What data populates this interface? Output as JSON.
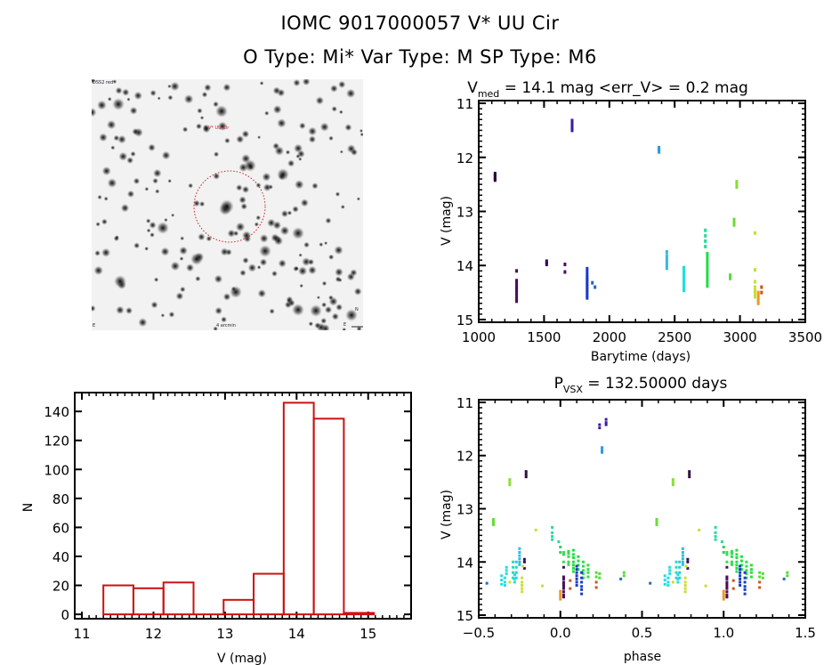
{
  "header": {
    "title_line1": "IOMC 9017000057    V* UU Cir",
    "title_line2": "O Type: Mi*  Var Type: M  SP Type: M6"
  },
  "sky_image": {
    "label_top_left": "DSS2 red",
    "label_target": "V* UU Cir",
    "label_bottom_center": "4 arcmin",
    "label_bottom_left": "E",
    "compass_labels": [
      "N",
      "E"
    ],
    "aperture_color": "#cc2222"
  },
  "chart_data": [
    {
      "id": "lightcurve",
      "type": "scatter",
      "title_main": "V",
      "title_sub": "med",
      "title_rest": " = 14.1 mag <err_V> = 0.2 mag",
      "xlabel": "Barytime (days)",
      "ylabel": "V (mag)",
      "xlim": [
        1000,
        3500
      ],
      "ylim": [
        15.05,
        10.95
      ],
      "xticks": [
        1000,
        1500,
        2000,
        2500,
        3000,
        3500
      ],
      "yticks": [
        11,
        12,
        13,
        14,
        15
      ],
      "groups": [
        {
          "color": "#2a0a3a",
          "x": 1125,
          "v": [
            12.3,
            12.33,
            12.36,
            12.4,
            12.42
          ]
        },
        {
          "color": "#4a0d5a",
          "x": 1290,
          "v": [
            14.1,
            14.28,
            14.32,
            14.38,
            14.42,
            14.46,
            14.5,
            14.56,
            14.62,
            14.66
          ]
        },
        {
          "color": "#3a0a5e",
          "x": 1520,
          "v": [
            13.92,
            13.95,
            13.98
          ]
        },
        {
          "color": "#4a0d66",
          "x": 1660,
          "v": [
            13.98,
            14.12
          ]
        },
        {
          "color": "#3a1aa0",
          "x": 1715,
          "v": [
            11.32,
            11.38,
            11.42,
            11.46,
            11.5
          ]
        },
        {
          "color": "#1a3ac8",
          "x": 1830,
          "v": [
            14.06,
            14.12,
            14.18,
            14.22,
            14.26,
            14.3,
            14.34,
            14.38,
            14.42,
            14.46,
            14.5,
            14.55,
            14.6
          ]
        },
        {
          "color": "#2266cc",
          "x": 1870,
          "v": [
            14.32
          ]
        },
        {
          "color": "#2266cc",
          "x": 1890,
          "v": [
            14.4
          ]
        },
        {
          "color": "#2a9ad8",
          "x": 2380,
          "v": [
            11.82,
            11.86,
            11.9
          ]
        },
        {
          "color": "#33bbdd",
          "x": 2440,
          "v": [
            13.75,
            13.82,
            13.88,
            13.94,
            14.0,
            14.05
          ]
        },
        {
          "color": "#22dde0",
          "x": 2570,
          "v": [
            14.04,
            14.1,
            14.16,
            14.22,
            14.28,
            14.34,
            14.4,
            14.46
          ]
        },
        {
          "color": "#22dd99",
          "x": 2735,
          "v": [
            13.35,
            13.45,
            13.55,
            13.65
          ]
        },
        {
          "color": "#22dd44",
          "x": 2750,
          "v": [
            13.78,
            13.84,
            13.9,
            13.96,
            14.02,
            14.08,
            14.14,
            14.2,
            14.26,
            14.32,
            14.38
          ]
        },
        {
          "color": "#55dd33",
          "x": 2925,
          "v": [
            14.18,
            14.24
          ]
        },
        {
          "color": "#66dd33",
          "x": 2955,
          "v": [
            13.15,
            13.2,
            13.25
          ]
        },
        {
          "color": "#88dd33",
          "x": 2975,
          "v": [
            12.45,
            12.5,
            12.55
          ]
        },
        {
          "color": "#ccdd33",
          "x": 3115,
          "v": [
            13.4,
            14.08,
            14.3,
            14.4,
            14.46,
            14.52,
            14.58
          ]
        },
        {
          "color": "#ee9922",
          "x": 3140,
          "v": [
            14.5,
            14.55,
            14.6,
            14.65,
            14.7
          ]
        },
        {
          "color": "#cc5522",
          "x": 3165,
          "v": [
            14.4,
            14.5
          ]
        }
      ]
    },
    {
      "id": "histogram",
      "type": "bar",
      "xlabel": "V (mag)",
      "ylabel": "N",
      "xlim": [
        10.9,
        15.6
      ],
      "ylim": [
        -3,
        153
      ],
      "xticks": [
        11,
        12,
        13,
        14,
        15
      ],
      "yticks": [
        0,
        20,
        40,
        60,
        80,
        100,
        120,
        140
      ],
      "bin_edges": [
        11.3,
        11.72,
        12.14,
        12.56,
        12.98,
        13.4,
        13.82,
        14.24,
        14.66,
        15.08
      ],
      "values": [
        20,
        18,
        22,
        0,
        10,
        28,
        146,
        135,
        1
      ],
      "color": "#cc1111"
    },
    {
      "id": "phase",
      "type": "scatter",
      "title_main": "P",
      "title_sub": "VSX",
      "title_rest": " = 132.50000 days",
      "xlabel": "phase",
      "ylabel": "V (mag)",
      "xlim": [
        -0.5,
        1.5
      ],
      "ylim": [
        15.05,
        10.95
      ],
      "xticks": [
        -0.5,
        0.0,
        0.5,
        1.0,
        1.5
      ],
      "xtick_labels": [
        "−0.5",
        "0.0",
        "0.5",
        "1.0",
        "1.5"
      ],
      "yticks": [
        11,
        12,
        13,
        14,
        15
      ],
      "groups": [
        {
          "color": "#2a0a3a",
          "phase": 0.79,
          "v": [
            12.3,
            12.35,
            12.4
          ]
        },
        {
          "color": "#3a1aa0",
          "phase": 0.24,
          "v": [
            11.42,
            11.48
          ]
        },
        {
          "color": "#3a1aa0",
          "phase": 0.28,
          "v": [
            11.32,
            11.38,
            11.42
          ]
        },
        {
          "color": "#2a9ad8",
          "phase": 0.255,
          "v": [
            11.85,
            11.9,
            11.94
          ]
        },
        {
          "color": "#88dd33",
          "phase": 0.69,
          "v": [
            12.45,
            12.5,
            12.55
          ]
        },
        {
          "color": "#66dd33",
          "phase": 0.59,
          "v": [
            13.2,
            13.25,
            13.3
          ]
        },
        {
          "color": "#ccdd33",
          "phase": 0.85,
          "v": [
            13.4
          ]
        },
        {
          "color": "#22dd99",
          "phase": 0.95,
          "v": [
            13.35,
            13.45,
            13.52,
            13.58
          ]
        },
        {
          "color": "#22dd99",
          "phase": 0.99,
          "v": [
            13.62
          ]
        },
        {
          "color": "#33cc66",
          "phase": 1.0,
          "v": [
            13.72,
            13.82
          ]
        },
        {
          "color": "#33dd55",
          "phase": 1.02,
          "v": [
            13.82,
            13.86,
            14.0
          ]
        },
        {
          "color": "#33dd44",
          "phase": 1.05,
          "v": [
            13.8,
            13.84,
            13.9,
            14.0,
            14.05
          ]
        },
        {
          "color": "#22dd44",
          "phase": 1.08,
          "v": [
            13.78,
            13.86,
            13.92,
            14.0,
            14.06,
            14.12,
            14.18
          ]
        },
        {
          "color": "#22dd44",
          "phase": 1.11,
          "v": [
            13.9,
            13.98,
            14.06,
            14.14
          ]
        },
        {
          "color": "#33dd44",
          "phase": 1.14,
          "v": [
            14.0,
            14.08,
            14.16,
            14.22,
            14.3
          ]
        },
        {
          "color": "#33dd44",
          "phase": 1.17,
          "v": [
            14.06,
            14.14,
            14.2,
            14.28
          ]
        },
        {
          "color": "#55dd33",
          "phase": 1.22,
          "v": [
            14.2,
            14.28
          ]
        },
        {
          "color": "#55dd33",
          "phase": 1.24,
          "v": [
            14.22,
            14.3
          ]
        },
        {
          "color": "#55dd33",
          "phase": 1.39,
          "v": [
            14.2,
            14.26
          ]
        },
        {
          "color": "#2266cc",
          "phase": 1.37,
          "v": [
            14.32
          ]
        },
        {
          "color": "#2266cc",
          "phase": 0.55,
          "v": [
            14.4
          ]
        },
        {
          "color": "#4a0d5a",
          "phase": 1.02,
          "v": [
            14.1,
            14.28,
            14.32,
            14.38,
            14.42,
            14.46,
            14.5,
            14.56,
            14.62,
            14.66
          ]
        },
        {
          "color": "#3a0a5e",
          "phase": 0.78,
          "v": [
            13.95,
            14.0
          ]
        },
        {
          "color": "#4a0d66",
          "phase": 0.78,
          "v": [
            14.12
          ]
        },
        {
          "color": "#1a3ac8",
          "phase": 1.1,
          "v": [
            14.08,
            14.14,
            14.2,
            14.26,
            14.32,
            14.38,
            14.44
          ]
        },
        {
          "color": "#1a3ac8",
          "phase": 1.13,
          "v": [
            14.2,
            14.3,
            14.38,
            14.46,
            14.52,
            14.6
          ]
        },
        {
          "color": "#ee9922",
          "phase": 1.0,
          "v": [
            14.55,
            14.6,
            14.65,
            14.7
          ]
        },
        {
          "color": "#cc5522",
          "phase": 1.06,
          "v": [
            14.35,
            14.5
          ]
        },
        {
          "color": "#cc5522",
          "phase": 1.22,
          "v": [
            14.38,
            14.48
          ]
        },
        {
          "color": "#33bbdd",
          "phase": 0.75,
          "v": [
            13.75,
            13.82,
            13.88,
            13.94,
            14.0,
            14.05
          ]
        },
        {
          "color": "#22ccdd",
          "phase": 0.73,
          "v": [
            14.0,
            14.1,
            14.2,
            14.3
          ]
        },
        {
          "color": "#22dde0",
          "phase": 0.66,
          "v": [
            14.3,
            14.38,
            14.44
          ]
        },
        {
          "color": "#22dde0",
          "phase": 0.64,
          "v": [
            14.26,
            14.34,
            14.42
          ]
        },
        {
          "color": "#22dde0",
          "phase": 0.67,
          "v": [
            14.1,
            14.16,
            14.22
          ]
        },
        {
          "color": "#22dde0",
          "phase": 0.72,
          "v": [
            14.24,
            14.32,
            14.38
          ]
        },
        {
          "color": "#22ddbb",
          "phase": 0.71,
          "v": [
            14.0,
            14.1,
            14.2,
            14.3
          ]
        },
        {
          "color": "#ccdd33",
          "phase": 0.765,
          "v": [
            14.3,
            14.38,
            14.44,
            14.5,
            14.56
          ]
        },
        {
          "color": "#ccdd33",
          "phase": 0.77,
          "v": [
            14.08
          ]
        },
        {
          "color": "#ccdd33",
          "phase": 0.89,
          "v": [
            14.45
          ]
        },
        {
          "color": "#ccdd33",
          "phase": 0.69,
          "v": [
            14.38
          ]
        }
      ]
    }
  ]
}
